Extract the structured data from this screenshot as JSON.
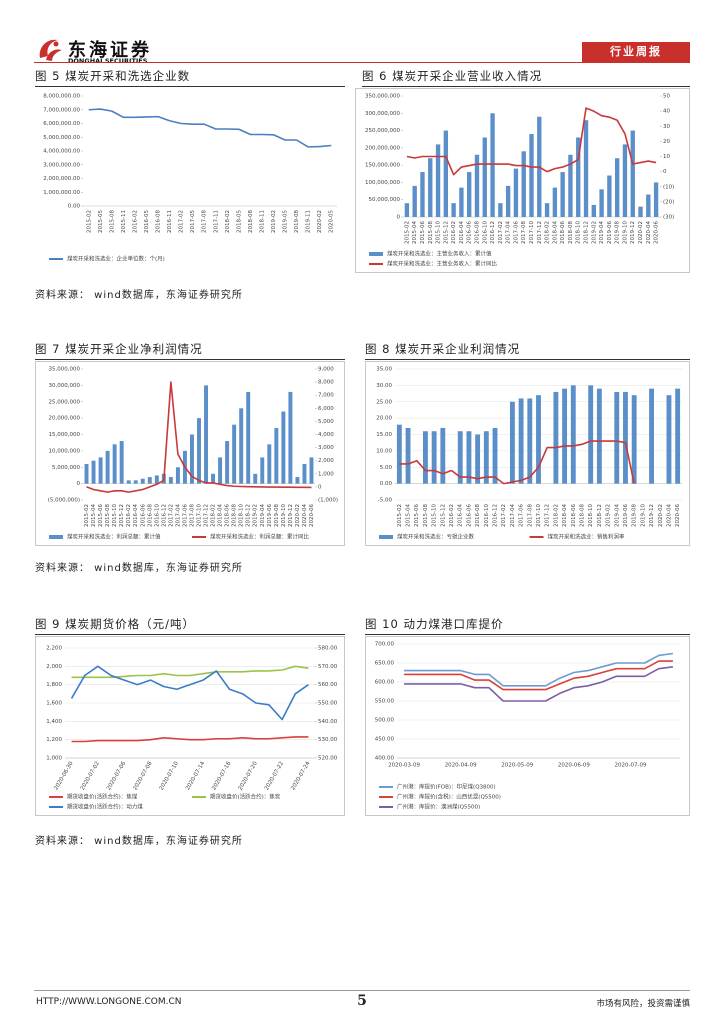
{
  "header": {
    "logo_name": "东海证券",
    "logo_sub": "DONGHAI SECURITIES",
    "report_type": "行业周报"
  },
  "chart_data": [
    {
      "type": "line",
      "title": "图 5   煤炭开采和洗选企业数",
      "grid": false,
      "categories": [
        "2015-02",
        "2015-05",
        "2015-08",
        "2015-11",
        "2016-02",
        "2016-05",
        "2016-08",
        "2016-11",
        "2017-02",
        "2017-05",
        "2017-08",
        "2017-11",
        "2018-02",
        "2018-05",
        "2018-08",
        "2018-11",
        "2019-02",
        "2019-05",
        "2019-08",
        "2019-11",
        "2020-02",
        "2020-05"
      ],
      "series": [
        {
          "name": "煤炭开采和洗选业：企业单位数：个(月)",
          "color": "#4a7fc1",
          "values": [
            7000000,
            7050000,
            6900000,
            6450000,
            6450000,
            6480000,
            6500000,
            6200000,
            6000000,
            5950000,
            5950000,
            5600000,
            5600000,
            5580000,
            5200000,
            5200000,
            5180000,
            4800000,
            4800000,
            4300000,
            4320000,
            4400000
          ]
        }
      ],
      "ylim": [
        0,
        8000000
      ],
      "yticks": [
        {
          "value": 0,
          "label": "0.00"
        },
        {
          "value": 1000000,
          "label": "1,000,000.00"
        },
        {
          "value": 2000000,
          "label": "2,000,000.00"
        },
        {
          "value": 3000000,
          "label": "3,000,000.00"
        },
        {
          "value": 4000000,
          "label": "4,000,000.00"
        },
        {
          "value": 5000000,
          "label": "5,000,000.00"
        },
        {
          "value": 6000000,
          "label": "6,000,000.00"
        },
        {
          "value": 7000000,
          "label": "7,000,000.00"
        },
        {
          "value": 8000000,
          "label": "8,000,000.00"
        }
      ]
    },
    {
      "type": "combo",
      "title": "图 6   煤炭开采企业营业收入情况",
      "grid": false,
      "categories": [
        "2015-02",
        "2015-04",
        "2015-06",
        "2015-08",
        "2015-10",
        "2015-12",
        "2016-02",
        "2016-04",
        "2016-06",
        "2016-08",
        "2016-10",
        "2016-12",
        "2017-02",
        "2017-04",
        "2017-06",
        "2017-08",
        "2017-10",
        "2017-12",
        "2018-02",
        "2018-04",
        "2018-06",
        "2018-08",
        "2018-10",
        "2018-12",
        "2019-02",
        "2019-04",
        "2019-06",
        "2019-08",
        "2019-10",
        "2019-12",
        "2020-02",
        "2020-04",
        "2020-06"
      ],
      "series": [
        {
          "name": "煤炭开采和洗选业：主营业务收入：累计值",
          "type": "bar",
          "color": "#5b8fc9",
          "values": [
            40000000,
            90000000,
            130000000,
            170000000,
            210000000,
            250000000,
            40000000,
            85000000,
            130000000,
            180000000,
            230000000,
            300000000,
            40000000,
            90000000,
            140000000,
            190000000,
            240000000,
            290000000,
            40000000,
            85000000,
            130000000,
            180000000,
            230000000,
            280000000,
            35000000,
            80000000,
            120000000,
            170000000,
            210000000,
            250000000,
            30000000,
            65000000,
            100000000
          ]
        },
        {
          "name": "煤炭开采和洗选业：主营业务收入：累计同比",
          "type": "line",
          "axis": "y2",
          "color": "#c9383a",
          "values": [
            10,
            9,
            10,
            10,
            10,
            10,
            -2,
            3,
            4,
            5,
            5,
            5,
            5,
            5,
            4,
            4,
            3,
            3,
            0,
            2,
            3,
            5,
            8,
            42,
            40,
            37,
            36,
            34,
            25,
            5,
            6,
            7,
            6
          ]
        }
      ],
      "ylim": [
        0,
        350000000
      ],
      "yticks": [
        0,
        {
          "value": 50000000,
          "label": "50,000,000"
        },
        {
          "value": 100000000,
          "label": "100,000,000"
        },
        {
          "value": 150000000,
          "label": "150,000,000"
        },
        {
          "value": 200000000,
          "label": "200,000,000"
        },
        {
          "value": 250000000,
          "label": "250,000,000"
        },
        {
          "value": 300000000,
          "label": "300,000,000"
        },
        {
          "value": 350000000,
          "label": "350,000,000"
        }
      ],
      "y2lim": [
        -30,
        50
      ],
      "y2ticks": [
        {
          "value": -30,
          "label": "(30)"
        },
        {
          "value": -20,
          "label": "(20)"
        },
        {
          "value": -10,
          "label": "(10)"
        },
        0,
        10,
        20,
        30,
        40,
        50
      ]
    },
    {
      "type": "combo",
      "title": "图 7   煤炭开采企业净利润情况",
      "grid": false,
      "categories": [
        "2015-02",
        "2015-04",
        "2015-06",
        "2015-08",
        "2015-10",
        "2015-12",
        "2016-02",
        "2016-04",
        "2016-06",
        "2016-08",
        "2016-10",
        "2016-12",
        "2017-02",
        "2017-04",
        "2017-06",
        "2017-08",
        "2017-10",
        "2017-12",
        "2018-02",
        "2018-04",
        "2018-06",
        "2018-08",
        "2018-10",
        "2018-12",
        "2019-02",
        "2019-04",
        "2019-06",
        "2019-08",
        "2019-10",
        "2019-12",
        "2020-02",
        "2020-04",
        "2020-06"
      ],
      "series": [
        {
          "name": "煤炭开采和洗选业：利润总额：累计值",
          "type": "bar",
          "color": "#5b8fc9",
          "values": [
            6000000,
            7000000,
            8000000,
            10000000,
            12000000,
            13000000,
            1000000,
            1000000,
            1500000,
            2000000,
            2500000,
            3000000,
            2000000,
            5000000,
            10000000,
            15000000,
            20000000,
            30000000,
            3000000,
            8000000,
            13000000,
            18000000,
            23000000,
            28000000,
            3000000,
            8000000,
            12000000,
            17000000,
            22000000,
            28000000,
            2000000,
            6000000,
            8000000
          ]
        },
        {
          "name": "煤炭开采和洗选业：利润总额：累计同比",
          "type": "line",
          "axis": "y2",
          "color": "#c9383a",
          "values": [
            0,
            -200,
            -300,
            -400,
            -300,
            -300,
            -400,
            -300,
            -200,
            0,
            200,
            500,
            8000,
            2500,
            1500,
            800,
            500,
            300,
            300,
            200,
            100,
            50,
            30,
            20,
            10,
            -5,
            -10,
            -10,
            -20,
            -20,
            -30,
            -30,
            -40
          ]
        }
      ],
      "ylim": [
        -5000000,
        35000000
      ],
      "yticks": [
        {
          "value": -5000000,
          "label": "(5,000,000)"
        },
        0,
        {
          "value": 5000000,
          "label": "5,000,000"
        },
        {
          "value": 10000000,
          "label": "10,000,000"
        },
        {
          "value": 15000000,
          "label": "15,000,000"
        },
        {
          "value": 20000000,
          "label": "20,000,000"
        },
        {
          "value": 25000000,
          "label": "25,000,000"
        },
        {
          "value": 30000000,
          "label": "30,000,000"
        },
        {
          "value": 35000000,
          "label": "35,000,000"
        }
      ],
      "y2lim": [
        -1000,
        9000
      ],
      "y2ticks": [
        {
          "value": -1000,
          "label": "(1,000)"
        },
        0,
        {
          "value": 1000,
          "label": "1,000"
        },
        {
          "value": 2000,
          "label": "2,000"
        },
        {
          "value": 3000,
          "label": "3,000"
        },
        {
          "value": 4000,
          "label": "4,000"
        },
        {
          "value": 5000,
          "label": "5,000"
        },
        {
          "value": 6000,
          "label": "6,000"
        },
        {
          "value": 7000,
          "label": "7,000"
        },
        {
          "value": 8000,
          "label": "8,000"
        },
        {
          "value": 9000,
          "label": "9,000"
        }
      ]
    },
    {
      "type": "combo",
      "title": "图 8   煤炭开采企业利润情况",
      "grid": true,
      "categories": [
        "2015-02",
        "2015-04",
        "2015-06",
        "2015-08",
        "2015-10",
        "2015-12",
        "2016-02",
        "2016-04",
        "2016-06",
        "2016-08",
        "2016-10",
        "2016-12",
        "2017-02",
        "2017-04",
        "2017-06",
        "2017-08",
        "2017-10",
        "2017-12",
        "2018-02",
        "2018-04",
        "2018-06",
        "2018-08",
        "2018-10",
        "2018-12",
        "2019-02",
        "2019-04",
        "2019-06",
        "2019-08",
        "2019-10",
        "2019-12",
        "2020-02",
        "2020-04",
        "2020-06"
      ],
      "series": [
        {
          "name": "煤炭开采和洗选业：亏损企业数",
          "type": "bar",
          "color": "#5b8fc9",
          "values": [
            18,
            17,
            null,
            16,
            16,
            17,
            null,
            16,
            16,
            15,
            16,
            17,
            null,
            25,
            26,
            26,
            27,
            null,
            28,
            29,
            30,
            null,
            30,
            29,
            null,
            28,
            28,
            27,
            null,
            29,
            null,
            27,
            29
          ]
        },
        {
          "name": "煤炭开采和洗选业：销售利润率",
          "type": "line",
          "color": "#c9383a",
          "values": [
            6,
            6,
            7,
            4,
            4,
            3,
            4,
            2,
            2,
            1.5,
            2,
            2,
            0,
            0.5,
            1,
            2,
            5,
            11,
            11,
            11.5,
            11.5,
            12,
            13,
            13,
            13,
            13,
            12.5,
            0,
            null,
            null,
            null,
            null,
            null
          ]
        }
      ],
      "ylim": [
        -5,
        35
      ],
      "yticks": [
        {
          "value": -5,
          "label": "-5.00"
        },
        {
          "value": 0,
          "label": "0.00"
        },
        {
          "value": 5,
          "label": "5.00"
        },
        {
          "value": 10,
          "label": "10.00"
        },
        {
          "value": 15,
          "label": "15.00"
        },
        {
          "value": 20,
          "label": "20.00"
        },
        {
          "value": 25,
          "label": "25.00"
        },
        {
          "value": 30,
          "label": "30.00"
        },
        {
          "value": 35,
          "label": "35.00"
        }
      ]
    },
    {
      "type": "line",
      "title": "图 9   煤炭期货价格（元/吨）",
      "grid": true,
      "categories": [
        "2020-06-30",
        null,
        "2020-07-02",
        null,
        "2020-07-06",
        null,
        "2020-07-08",
        null,
        "2020-07-10",
        null,
        "2020-07-14",
        null,
        "2020-07-16",
        null,
        "2020-07-20",
        null,
        "2020-07-22",
        null,
        "2020-07-24"
      ],
      "series": [
        {
          "name": "期货收盘价(活跃合约)：焦煤",
          "color": "#d9413a",
          "values": [
            1180,
            1180,
            1190,
            1190,
            1190,
            1190,
            1200,
            1220,
            1210,
            1200,
            1200,
            1210,
            1210,
            1220,
            1210,
            1210,
            1220,
            1230,
            1230
          ]
        },
        {
          "name": "期货收盘价(活跃合约)：焦炭",
          "color": "#9bc34a",
          "values": [
            1880,
            1880,
            1880,
            1880,
            1890,
            1900,
            1900,
            1920,
            1900,
            1900,
            1920,
            1940,
            1940,
            1940,
            1950,
            1950,
            1960,
            2000,
            1980
          ]
        },
        {
          "name": "期货收盘价(活跃合约)：动力煤",
          "axis": "y2",
          "color": "#3d7cc9",
          "values": [
            552.5,
            565,
            570,
            565,
            562.5,
            560,
            562.5,
            559,
            557.5,
            560,
            562.5,
            567.5,
            557.5,
            555,
            550,
            549,
            541,
            555,
            560
          ]
        }
      ],
      "ylim": [
        1000,
        2200
      ],
      "yticks": [
        {
          "value": 1000,
          "label": "1,000"
        },
        {
          "value": 1200,
          "label": "1,200"
        },
        {
          "value": 1400,
          "label": "1,400"
        },
        {
          "value": 1600,
          "label": "1,600"
        },
        {
          "value": 1800,
          "label": "1,800"
        },
        {
          "value": 2000,
          "label": "2,000"
        },
        {
          "value": 2200,
          "label": "2,200"
        }
      ],
      "y2lim": [
        520,
        580
      ],
      "y2ticks": [
        {
          "value": 520,
          "label": "520.00"
        },
        {
          "value": 530,
          "label": "530.00"
        },
        {
          "value": 540,
          "label": "540.00"
        },
        {
          "value": 550,
          "label": "550.00"
        },
        {
          "value": 560,
          "label": "560.00"
        },
        {
          "value": 570,
          "label": "570.00"
        },
        {
          "value": 580,
          "label": "580.00"
        }
      ]
    },
    {
      "type": "line",
      "title": "图 10   动力煤港口库提价",
      "grid": true,
      "categories": [
        "2020-03-09",
        null,
        null,
        null,
        "2020-04-09",
        null,
        null,
        null,
        "2020-05-09",
        null,
        null,
        null,
        "2020-06-09",
        null,
        null,
        null,
        "2020-07-09",
        null,
        null,
        null
      ],
      "series": [
        {
          "name": "广州港：库提价(FOB)：印尼煤(Q3800)",
          "color": "#6a9bd4",
          "values": [
            630,
            630,
            630,
            630,
            630,
            620,
            620,
            590,
            590,
            590,
            590,
            610,
            625,
            630,
            640,
            650,
            650,
            650,
            670,
            675
          ]
        },
        {
          "name": "广州港：库提价(含税)：山西优混(Q5500)",
          "color": "#d9413a",
          "values": [
            620,
            620,
            620,
            620,
            620,
            605,
            605,
            580,
            580,
            580,
            580,
            595,
            610,
            615,
            625,
            635,
            635,
            635,
            655,
            655
          ]
        },
        {
          "name": "广州港：库提价：澳洲煤(Q5500)",
          "color": "#7b5ea7",
          "values": [
            595,
            595,
            595,
            595,
            595,
            585,
            585,
            550,
            550,
            550,
            550,
            570,
            585,
            590,
            600,
            615,
            615,
            615,
            635,
            640
          ]
        }
      ],
      "ylim": [
        400,
        700
      ],
      "yticks": [
        {
          "value": 400,
          "label": "400.00"
        },
        {
          "value": 450,
          "label": "450.00"
        },
        {
          "value": 500,
          "label": "500.00"
        },
        {
          "value": 550,
          "label": "550.00"
        },
        {
          "value": 600,
          "label": "600.00"
        },
        {
          "value": 650,
          "label": "650.00"
        },
        {
          "value": 700,
          "label": "700.00"
        }
      ]
    }
  ],
  "sources": [
    "资料来源：  wind数据库，东海证券研究所",
    "资料来源：  wind数据库，东海证券研究所",
    "资料来源：  wind数据库，东海证券研究所"
  ],
  "footer": {
    "url": "HTTP://WWW.LONGONE.COM.CN",
    "page": "5",
    "disclaimer": "市场有风险，投资需谨慎"
  }
}
